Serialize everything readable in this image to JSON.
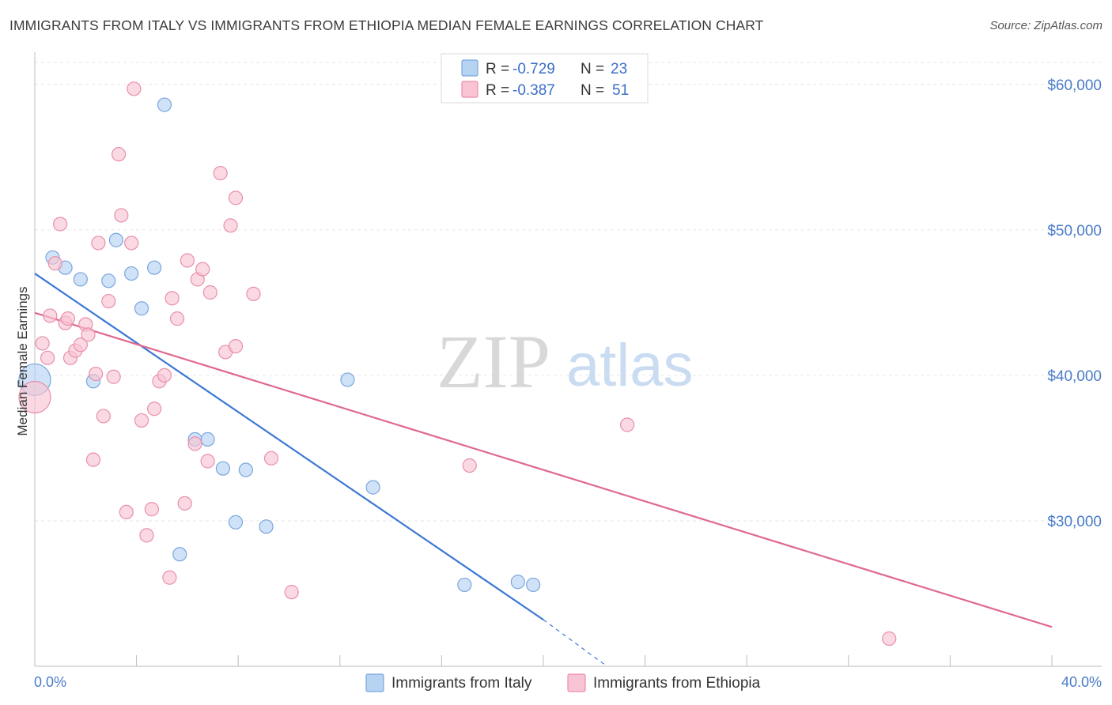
{
  "title": "IMMIGRANTS FROM ITALY VS IMMIGRANTS FROM ETHIOPIA MEDIAN FEMALE EARNINGS CORRELATION CHART",
  "source": "Source: ZipAtlas.com",
  "watermark": {
    "zip": "ZIP",
    "atlas": "atlas"
  },
  "colors": {
    "italy_fill": "#b7d3f2",
    "italy_stroke": "#7aa6dd",
    "italy_line": "#3b78d4",
    "ethiopia_fill": "#f8c4d3",
    "ethiopia_stroke": "#e98fac",
    "ethiopia_line": "#e06890",
    "axis_label": "#4a7cc9",
    "grid": "#e6e6e6"
  },
  "legend": {
    "rows": [
      {
        "r_label": "R =",
        "r_value": "-0.729",
        "n_label": "N =",
        "n_value": "23",
        "series": "italy"
      },
      {
        "r_label": "R =",
        "r_value": "-0.387",
        "n_label": "N =",
        "n_value": "51",
        "series": "ethiopia"
      }
    ]
  },
  "chart_data": {
    "type": "scatter",
    "xlabel": "",
    "ylabel": "Median Female Earnings",
    "xlim": [
      0,
      40
    ],
    "ylim": [
      20000,
      62000
    ],
    "x_tick_labels": [
      "0.0%",
      "40.0%"
    ],
    "y_ticks": [
      {
        "value": 30000,
        "label": "$30,000"
      },
      {
        "value": 40000,
        "label": "$40,000"
      },
      {
        "value": 50000,
        "label": "$50,000"
      },
      {
        "value": 60000,
        "label": "$60,000"
      }
    ],
    "grid": true,
    "legend_position": "top-center",
    "series": [
      {
        "name": "Immigrants from Italy",
        "key": "italy",
        "r": -0.729,
        "n": 23,
        "trendline": {
          "x0": 0,
          "y0": 47000,
          "x1": 20,
          "y1": 23200,
          "dashed_to_x": 22.5,
          "dashed_to_y": 20000
        },
        "points": [
          [
            0.0,
            39700,
            "large"
          ],
          [
            0.7,
            48100
          ],
          [
            1.2,
            47400
          ],
          [
            1.8,
            46600
          ],
          [
            2.3,
            39600
          ],
          [
            2.9,
            46500
          ],
          [
            3.2,
            49300
          ],
          [
            3.8,
            47000
          ],
          [
            4.2,
            44600
          ],
          [
            4.7,
            47400
          ],
          [
            5.1,
            58600
          ],
          [
            5.7,
            27700
          ],
          [
            6.3,
            35600
          ],
          [
            6.8,
            35600
          ],
          [
            7.4,
            33600
          ],
          [
            7.9,
            29900
          ],
          [
            8.3,
            33500
          ],
          [
            9.1,
            29600
          ],
          [
            12.3,
            39700
          ],
          [
            13.3,
            32300
          ],
          [
            16.9,
            25600
          ],
          [
            19.0,
            25800
          ],
          [
            19.6,
            25600
          ]
        ]
      },
      {
        "name": "Immigrants from Ethiopia",
        "key": "ethiopia",
        "r": -0.387,
        "n": 51,
        "trendline": {
          "x0": 0,
          "y0": 44300,
          "x1": 40,
          "y1": 22700
        },
        "points": [
          [
            0.0,
            38500,
            "large"
          ],
          [
            0.3,
            42200
          ],
          [
            0.5,
            41200
          ],
          [
            0.6,
            44100
          ],
          [
            0.8,
            47700
          ],
          [
            1.0,
            50400
          ],
          [
            1.2,
            43600
          ],
          [
            1.3,
            43900
          ],
          [
            1.4,
            41200
          ],
          [
            1.6,
            41700
          ],
          [
            1.8,
            42100
          ],
          [
            2.0,
            43500
          ],
          [
            2.1,
            42800
          ],
          [
            2.3,
            34200
          ],
          [
            2.4,
            40100
          ],
          [
            2.5,
            49100
          ],
          [
            2.7,
            37200
          ],
          [
            2.9,
            45100
          ],
          [
            3.1,
            39900
          ],
          [
            3.3,
            55200
          ],
          [
            3.4,
            51000
          ],
          [
            3.6,
            30600
          ],
          [
            3.8,
            49100
          ],
          [
            3.9,
            59700
          ],
          [
            4.2,
            36900
          ],
          [
            4.4,
            29000
          ],
          [
            4.6,
            30800
          ],
          [
            4.7,
            37700
          ],
          [
            4.9,
            39600
          ],
          [
            5.1,
            40000
          ],
          [
            5.3,
            26100
          ],
          [
            5.4,
            45300
          ],
          [
            5.6,
            43900
          ],
          [
            5.9,
            31200
          ],
          [
            6.0,
            47900
          ],
          [
            6.3,
            35300
          ],
          [
            6.4,
            46600
          ],
          [
            6.6,
            47300
          ],
          [
            6.8,
            34100
          ],
          [
            6.9,
            45700
          ],
          [
            7.3,
            53900
          ],
          [
            7.5,
            41600
          ],
          [
            7.7,
            50300
          ],
          [
            7.9,
            52200
          ],
          [
            7.9,
            42000
          ],
          [
            8.6,
            45600
          ],
          [
            9.3,
            34300
          ],
          [
            10.1,
            25100
          ],
          [
            17.1,
            33800
          ],
          [
            23.3,
            36600
          ],
          [
            33.6,
            21900
          ]
        ]
      }
    ]
  },
  "bottom_legend": [
    {
      "label": "Immigrants from Italy",
      "series": "italy"
    },
    {
      "label": "Immigrants from Ethiopia",
      "series": "ethiopia"
    }
  ]
}
